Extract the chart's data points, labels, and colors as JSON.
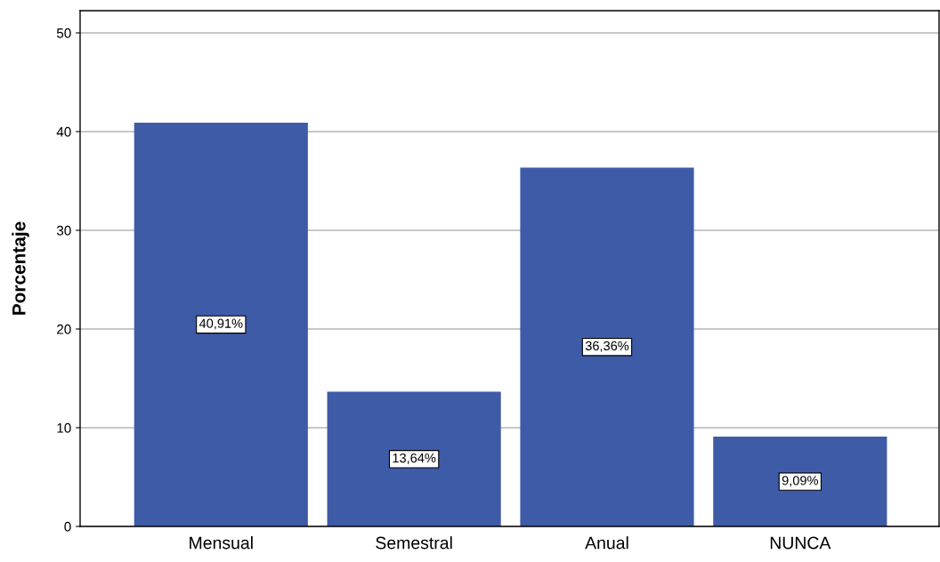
{
  "chart_data": {
    "type": "bar",
    "ylabel": "Porcentaje",
    "categories": [
      "Mensual",
      "Semestral",
      "Anual",
      "NUNCA"
    ],
    "values": [
      40.91,
      13.64,
      36.36,
      9.09
    ],
    "value_labels": [
      "40,91%",
      "13,64%",
      "36,36%",
      "9,09%"
    ],
    "color": "#3e5ba8",
    "ylim": [
      0,
      52.25
    ],
    "yticks": [
      0,
      10,
      20,
      30,
      40,
      50
    ],
    "grid": "y",
    "legend": false
  }
}
